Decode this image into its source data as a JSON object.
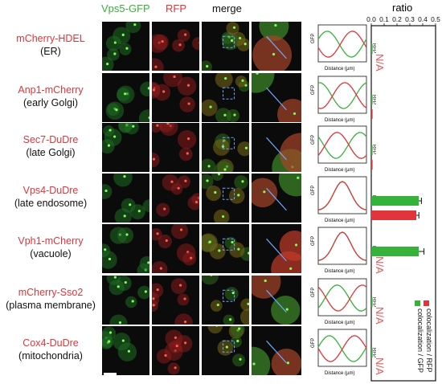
{
  "headers": {
    "gfp": "Vps5-GFP",
    "rfp": "RFP",
    "merge": "merge",
    "ratio": "ratio"
  },
  "colors": {
    "gfp": "#36b23a",
    "rfp": "#e0353a",
    "label_red": "#e0353a"
  },
  "rows": [
    {
      "marker": "mCherry-HDEL",
      "sub": "(ER)",
      "na": "N/A"
    },
    {
      "marker": "Anp1-mCherry",
      "sub": "(early Golgi)",
      "na": ""
    },
    {
      "marker": "Sec7-DuDre",
      "sub": "(late Golgi)",
      "na": ""
    },
    {
      "marker": "Vps4-DuDre",
      "sub": "(late endosome)",
      "na": ""
    },
    {
      "marker": "Vph1-mCherry",
      "sub": "(vacuole)",
      "na": "N/A"
    },
    {
      "marker": "mCherry-Sso2",
      "sub": "(plasma membrane)",
      "na": "N/A"
    },
    {
      "marker": "Cox4-DuDre",
      "sub": "(mitochondria)",
      "na": "N/A"
    }
  ],
  "line_plot": {
    "ylabel_left": "GFP",
    "ylabel_right": "RFP",
    "xlabel": "Distance (µm)"
  },
  "chart_data": {
    "type": "bar",
    "title": "ratio",
    "xlim": [
      0.0,
      0.5
    ],
    "ticks": [
      "0.0",
      "0.1",
      "0.2",
      "0.3",
      "0.4",
      "0.5"
    ],
    "categories": [
      "mCherry-HDEL",
      "Anp1-mCherry",
      "Sec7-DuDre",
      "Vps4-DuDre",
      "Vph1-mCherry",
      "mCherry-Sso2",
      "Cox4-DuDre"
    ],
    "series": [
      {
        "name": "colocalization / GFP",
        "color": "#36b23a",
        "values": [
          0.01,
          0.01,
          0.01,
          0.37,
          0.37,
          0.01,
          0.01
        ],
        "errors": [
          0,
          0,
          0,
          0.02,
          0.04,
          0,
          0
        ]
      },
      {
        "name": "colocalization / RFP",
        "color": "#e0353a",
        "values": [
          null,
          0.01,
          0.01,
          0.35,
          null,
          null,
          null
        ],
        "errors": [
          0,
          0,
          0,
          0.02,
          0,
          0,
          0
        ]
      }
    ],
    "legend_position": "bottom-right, vertical"
  },
  "scale_bar": ""
}
